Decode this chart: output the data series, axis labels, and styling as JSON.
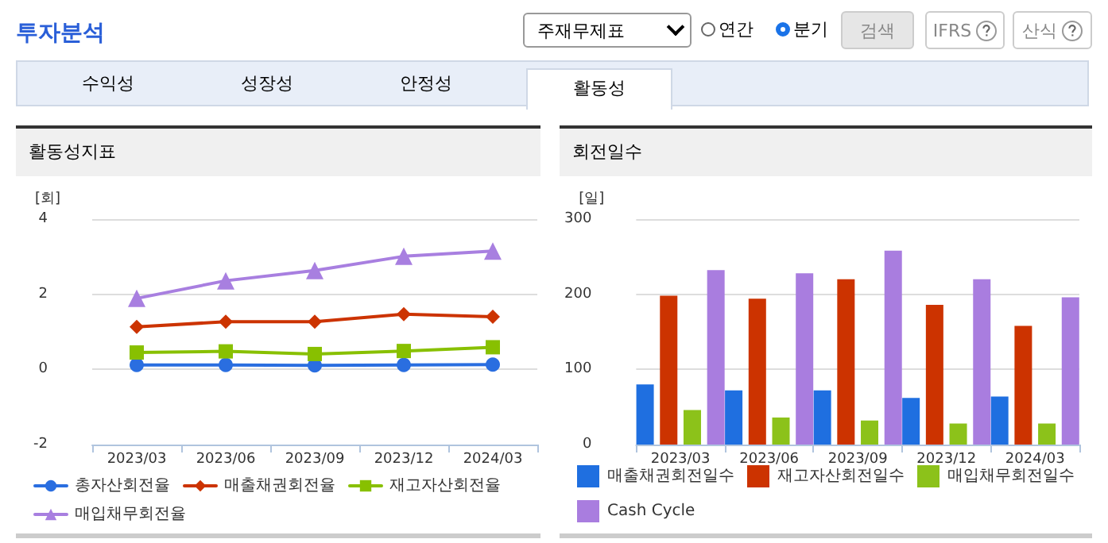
{
  "chart_data": [
    {
      "type": "other",
      "title": "투자분석",
      "annotations": [
        "주재무제표",
        "연간",
        "분기",
        "검색",
        "IFRS",
        "산식",
        "수익성",
        "성장성",
        "안정성",
        "활동성"
      ]
    },
    {
      "type": "line",
      "title": "활동성지표",
      "ylabel": "[회]",
      "categories": [
        "2023/03",
        "2023/06",
        "2023/09",
        "2023/12",
        "2024/03"
      ],
      "series": [
        {
          "name": "총자산회전율",
          "color": "#2a6ee0",
          "marker": "circle",
          "values": [
            0.12,
            0.12,
            0.11,
            0.12,
            0.13
          ]
        },
        {
          "name": "매출채권회전율",
          "color": "#cc3300",
          "marker": "diamond",
          "values": [
            1.13,
            1.27,
            1.27,
            1.47,
            1.4
          ]
        },
        {
          "name": "재고자산회전율",
          "color": "#88c000",
          "marker": "square",
          "values": [
            0.45,
            0.48,
            0.41,
            0.49,
            0.59
          ]
        },
        {
          "name": "매입채무회전율",
          "color": "#a87fe0",
          "marker": "triangle",
          "values": [
            1.89,
            2.36,
            2.63,
            3.01,
            3.15
          ]
        }
      ],
      "ylim": [
        -2,
        4
      ],
      "yticks": [
        -2,
        0,
        2,
        4
      ],
      "grid": "y",
      "legend": "bottom"
    },
    {
      "type": "bar",
      "title": "회전일수",
      "ylabel": "[일]",
      "categories": [
        "2023/03",
        "2023/06",
        "2023/09",
        "2023/12",
        "2024/03"
      ],
      "series": [
        {
          "name": "매출채권회전일수",
          "color": "#1f6fe0",
          "values": [
            80,
            72,
            72,
            62,
            64
          ]
        },
        {
          "name": "재고자산회전일수",
          "color": "#cc3300",
          "values": [
            198,
            194,
            220,
            186,
            158
          ]
        },
        {
          "name": "매입채무회전일수",
          "color": "#8cc21a",
          "values": [
            46,
            36,
            32,
            28,
            28
          ]
        },
        {
          "name": "Cash Cycle",
          "color": "#a97ddf",
          "values": [
            232,
            228,
            258,
            220,
            196
          ]
        }
      ],
      "ylim": [
        0,
        300
      ],
      "yticks": [
        0,
        100,
        200,
        300
      ],
      "grid": "y",
      "legend": "bottom"
    }
  ]
}
